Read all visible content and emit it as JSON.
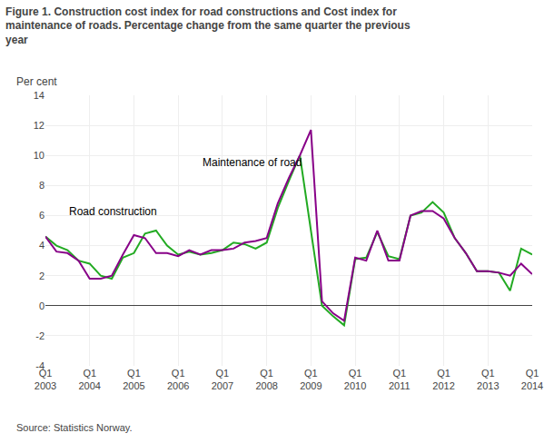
{
  "chart_data": {
    "type": "line",
    "title": "Figure 1. Construction cost index for road constructions and Cost index for\nmaintenance of roads. Percentage change from the same quarter the previous\nyear",
    "ylabel": "Per cent",
    "source": "Source: Statistics Norway.",
    "categories": [
      "Q1\n2003",
      null,
      null,
      null,
      "Q1\n2004",
      null,
      null,
      null,
      "Q1\n2005",
      null,
      null,
      null,
      "Q1\n2006",
      null,
      null,
      null,
      "Q1\n2007",
      null,
      null,
      null,
      "Q1\n2008",
      null,
      null,
      null,
      "Q1\n2009",
      null,
      null,
      null,
      "Q1\n2010",
      null,
      null,
      null,
      "Q1\n2011",
      null,
      null,
      null,
      "Q1\n2012",
      null,
      null,
      null,
      "Q1\n2013",
      null,
      null,
      null,
      "Q1\n2014"
    ],
    "series": [
      {
        "color": "#22aa22",
        "values": [
          4.6,
          4.0,
          3.7,
          3.0,
          2.8,
          2.0,
          1.8,
          3.2,
          3.5,
          4.8,
          5.0,
          4.0,
          3.4,
          3.6,
          3.4,
          3.5,
          3.7,
          4.2,
          4.1,
          3.8,
          4.2,
          6.5,
          8.3,
          10.0,
          5.0,
          0.0,
          -0.7,
          -1.3,
          3.1,
          3.2,
          4.9,
          3.3,
          3.1,
          6.0,
          6.2,
          6.9,
          6.2,
          4.5,
          3.5,
          2.3,
          2.3,
          2.2,
          1.0,
          3.8,
          3.4
        ]
      },
      {
        "color": "#880088",
        "values": [
          4.6,
          3.6,
          3.5,
          3.0,
          1.8,
          1.8,
          2.0,
          3.4,
          4.7,
          4.5,
          3.5,
          3.5,
          3.3,
          3.7,
          3.4,
          3.7,
          3.7,
          3.8,
          4.2,
          4.3,
          4.5,
          6.8,
          8.5,
          10.0,
          11.7,
          0.3,
          -0.5,
          -1.0,
          3.2,
          3.0,
          5.0,
          3.0,
          3.0,
          6.0,
          6.3,
          6.3,
          5.8,
          4.5,
          3.5,
          2.3,
          2.3,
          2.2,
          2.0,
          2.8,
          2.1
        ]
      }
    ],
    "ylim": [
      -4,
      14
    ],
    "yticks": [
      -4,
      -2,
      0,
      2,
      4,
      6,
      8,
      10,
      12,
      14
    ],
    "grid": true,
    "annotations": [
      {
        "text": "Road construction",
        "x": 2,
        "y": 5.7
      },
      {
        "text": "Maintenance of road",
        "x": 14,
        "y": 9.0
      }
    ]
  }
}
